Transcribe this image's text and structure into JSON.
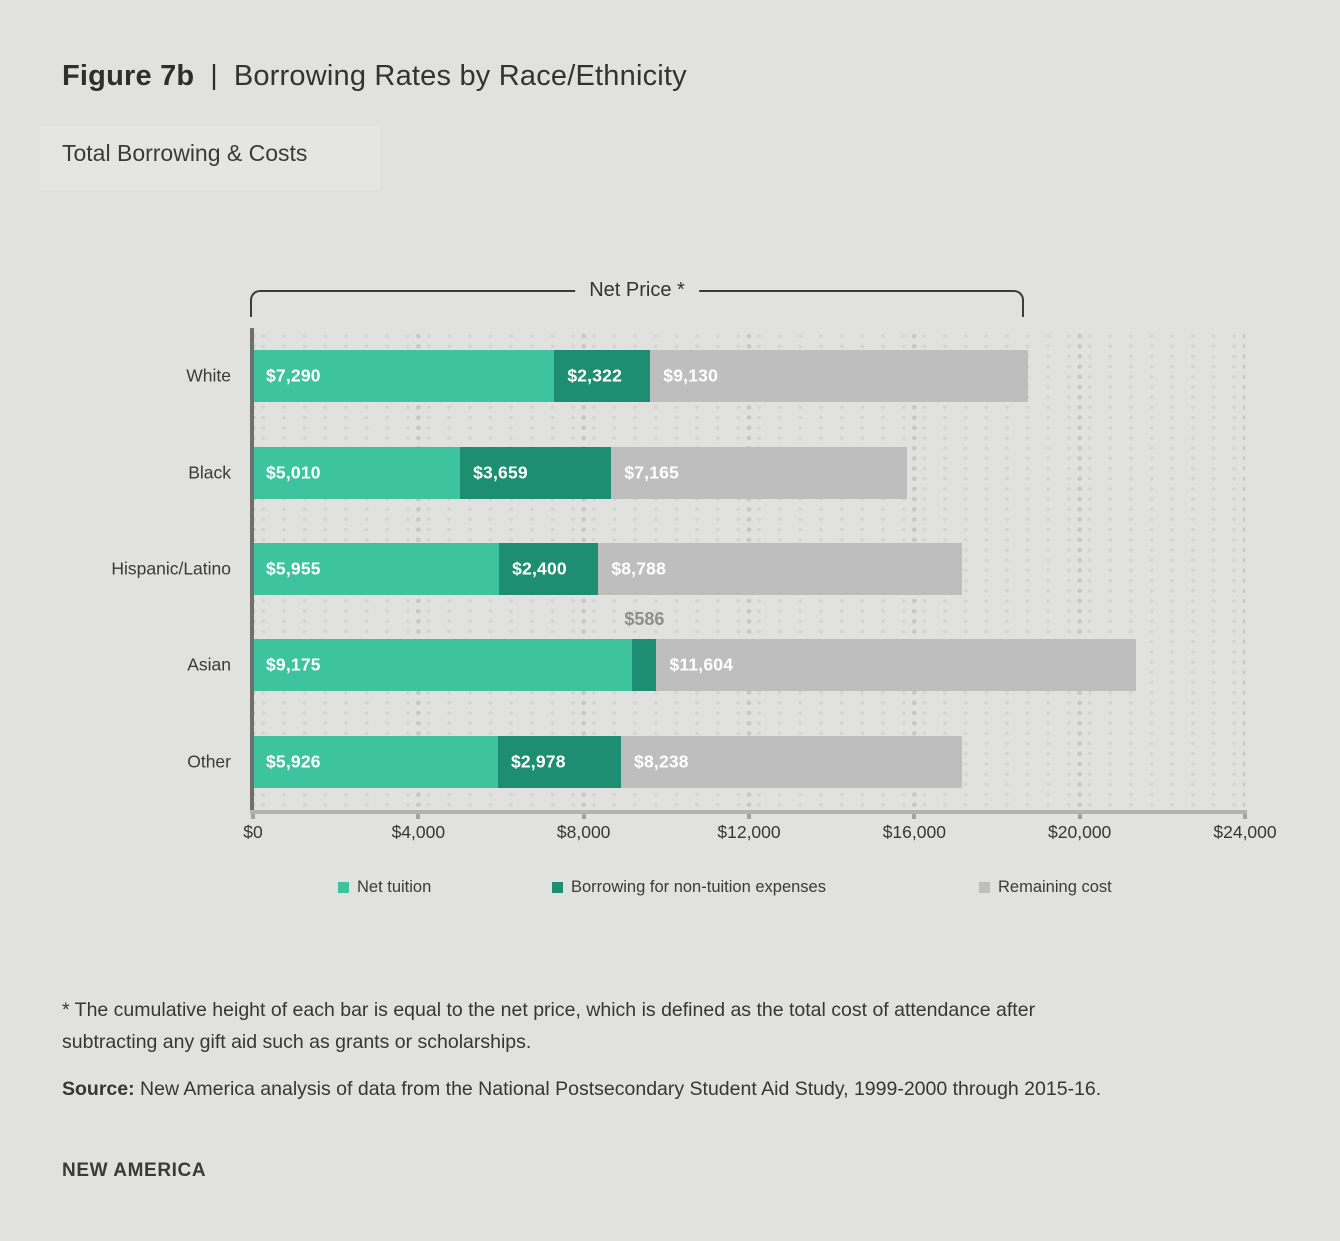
{
  "header": {
    "figure_label": "Figure 7b",
    "separator": "|",
    "title": "Borrowing Rates by Race/Ethnicity",
    "subtitle": "Total Borrowing & Costs"
  },
  "chart_data": {
    "type": "bar",
    "orientation": "horizontal-stacked",
    "bracket_label": "Net Price *",
    "categories": [
      "White",
      "Black",
      "Hispanic/Latino",
      "Asian",
      "Other"
    ],
    "series": [
      {
        "name": "Net tuition",
        "color": "#3ec39f",
        "values": [
          7290,
          5010,
          5955,
          9175,
          5926
        ],
        "labels": [
          "$7,290",
          "$5,010",
          "$5,955",
          "$9,175",
          "$5,926"
        ]
      },
      {
        "name": "Borrowing for non-tuition expenses",
        "color": "#1e8e72",
        "values": [
          2322,
          3659,
          2400,
          586,
          2978
        ],
        "labels": [
          "$2,322",
          "$3,659",
          "$2,400",
          "$586",
          "$2,978"
        ]
      },
      {
        "name": "Remaining cost",
        "color": "#bfbebe",
        "values": [
          9130,
          7165,
          8788,
          11604,
          8238
        ],
        "labels": [
          "$9,130",
          "$7,165",
          "$8,788",
          "$11,604",
          "$8,238"
        ]
      }
    ],
    "xlim": [
      0,
      24000
    ],
    "x_ticks": [
      "$0",
      "$4,000",
      "$8,000",
      "$12,000",
      "$16,000",
      "$20,000",
      "$24,000"
    ],
    "grid": "dotted-vertical",
    "legend_position": "bottom",
    "outside_label_color": "#8e8e8e",
    "bar_label_color": "#ffffff"
  },
  "notes": {
    "footnote": "* The cumulative height of each bar is equal to the net price, which is defined as the total cost of attendance after subtracting any gift aid such as grants or scholarships.",
    "source_label": "Source:",
    "source_text": " New America analysis of data from the National Postsecondary Student Aid Study, 1999-2000 through 2015-16."
  },
  "footer": {
    "logo": "NEW AMERICA"
  }
}
